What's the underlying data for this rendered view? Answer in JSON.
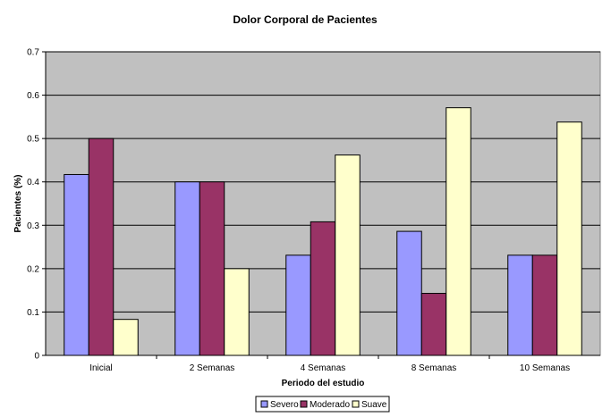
{
  "chart_data": {
    "type": "bar",
    "title": "Dolor Corporal de Pacientes",
    "xlabel": "Periodo del estudio",
    "ylabel": "Pacientes (%)",
    "categories": [
      "Inicial",
      "2 Semanas",
      "4 Semanas",
      "8 Semanas",
      "10 Semanas"
    ],
    "series": [
      {
        "name": "Severo",
        "color": "#9999ff",
        "values": [
          0.417,
          0.4,
          0.231,
          0.286,
          0.231
        ]
      },
      {
        "name": "Moderado",
        "color": "#993366",
        "values": [
          0.5,
          0.4,
          0.308,
          0.143,
          0.231
        ]
      },
      {
        "name": "Suave",
        "color": "#ffffcc",
        "values": [
          0.083,
          0.2,
          0.462,
          0.571,
          0.538
        ]
      }
    ],
    "yticks": [
      "0",
      "0.1",
      "0.2",
      "0.3",
      "0.4",
      "0.5",
      "0.6",
      "0.7"
    ],
    "ylim": [
      0,
      0.7
    ],
    "grid": true,
    "plot_background": "#c0c0c0",
    "legend_position": "bottom"
  }
}
